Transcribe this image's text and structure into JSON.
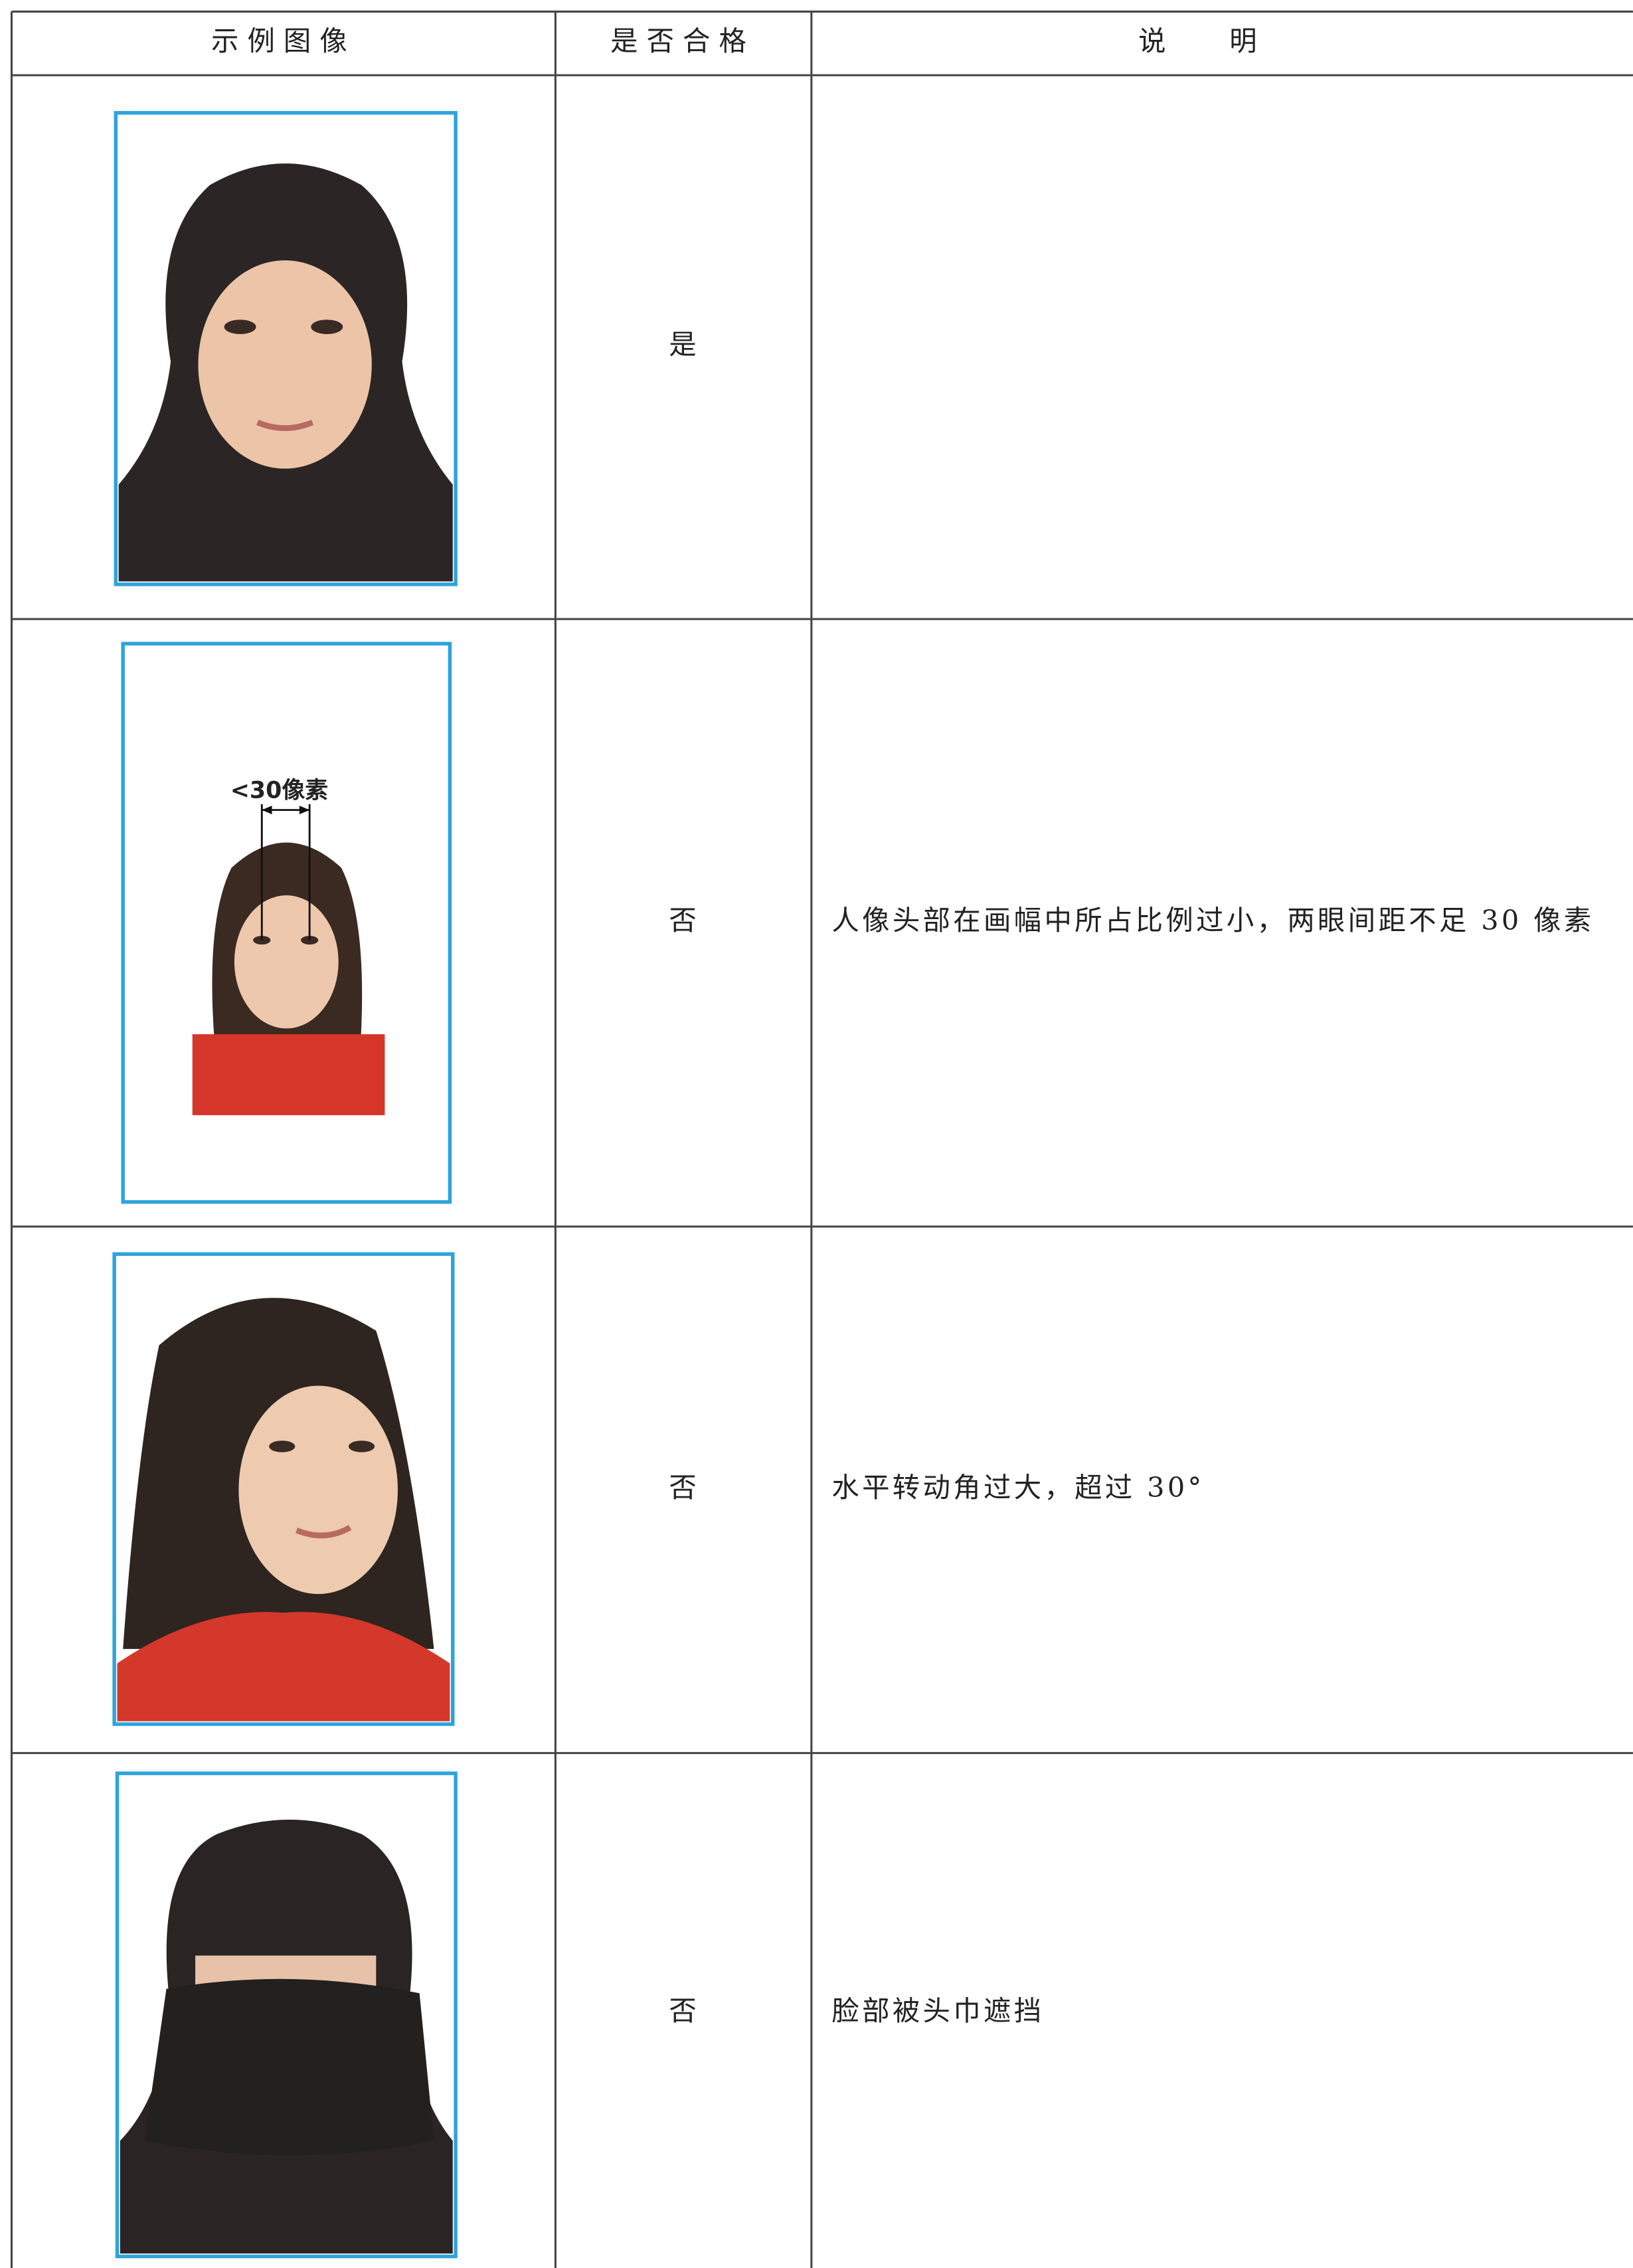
{
  "table": {
    "header": [
      "示例图像",
      "是否合格",
      "说明"
    ],
    "rows": [
      {
        "qualified": "是"
      },
      {
        "qualified": "否",
        "annotation": "<30像素",
        "description": "人像头部在画幅中所占比例过小，两眼间距不足 30 像素"
      },
      {
        "qualified": "否",
        "description": "水平转动角过大，超过 30°"
      },
      {
        "qualified": "否",
        "description": "脸部被头巾遮挡"
      }
    ]
  }
}
